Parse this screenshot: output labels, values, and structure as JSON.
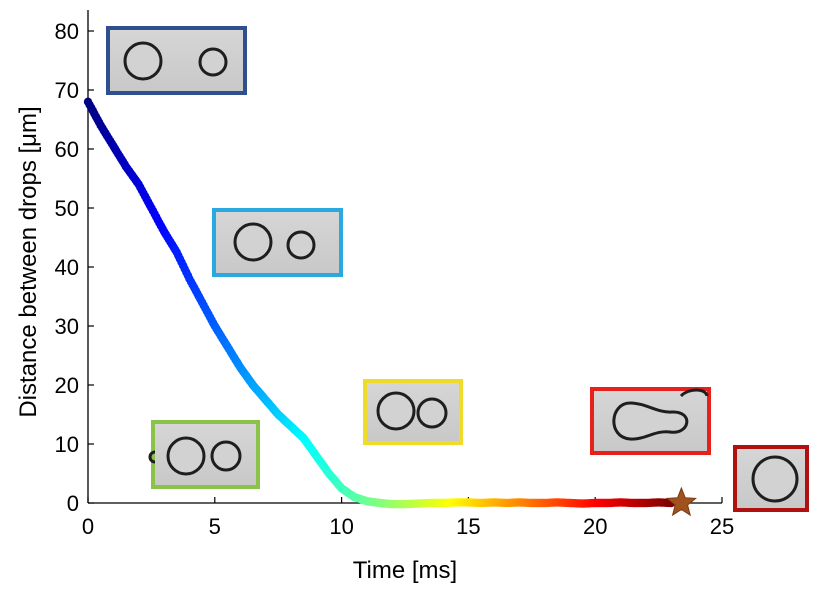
{
  "chart_data": {
    "type": "scatter",
    "xlabel": "Time [ms]",
    "ylabel": "Distance between drops [μm]",
    "xlim": [
      0,
      25
    ],
    "ylim": [
      -3,
      80
    ],
    "xticks": [
      0,
      5,
      10,
      15,
      20,
      25
    ],
    "yticks": [
      0,
      10,
      20,
      30,
      40,
      50,
      60,
      70,
      80
    ],
    "grid": false,
    "series": [
      {
        "marker": "circle",
        "colormap": "jet",
        "points": [
          [
            0.0,
            68.0
          ],
          [
            0.5,
            64.0
          ],
          [
            1.0,
            60.5
          ],
          [
            1.5,
            57.0
          ],
          [
            2.0,
            54.0
          ],
          [
            2.5,
            50.0
          ],
          [
            3.0,
            46.0
          ],
          [
            3.5,
            42.5
          ],
          [
            4.0,
            38.0
          ],
          [
            4.5,
            34.0
          ],
          [
            5.0,
            30.0
          ],
          [
            5.5,
            26.5
          ],
          [
            6.0,
            23.0
          ],
          [
            6.5,
            20.0
          ],
          [
            7.0,
            17.5
          ],
          [
            7.5,
            15.0
          ],
          [
            8.0,
            13.0
          ],
          [
            8.5,
            11.0
          ],
          [
            9.0,
            8.0
          ],
          [
            9.5,
            5.0
          ],
          [
            10.0,
            2.5
          ],
          [
            10.5,
            1.0
          ],
          [
            11.0,
            0.3
          ],
          [
            11.5,
            0.0
          ],
          [
            12.0,
            -0.2
          ],
          [
            12.5,
            -0.2
          ],
          [
            13.0,
            -0.1
          ],
          [
            13.5,
            0.0
          ],
          [
            14.0,
            0.0
          ],
          [
            14.5,
            0.1
          ],
          [
            15.0,
            0.1
          ],
          [
            15.5,
            0.0
          ],
          [
            16.0,
            0.1
          ],
          [
            16.5,
            0.0
          ],
          [
            17.0,
            0.1
          ],
          [
            17.5,
            0.0
          ],
          [
            18.0,
            0.0
          ],
          [
            18.5,
            0.1
          ],
          [
            19.0,
            0.0
          ],
          [
            19.5,
            -0.1
          ],
          [
            20.0,
            0.0
          ],
          [
            20.5,
            0.0
          ],
          [
            21.0,
            0.1
          ],
          [
            21.5,
            0.0
          ],
          [
            22.0,
            0.0
          ],
          [
            22.5,
            0.1
          ],
          [
            23.0,
            0.0
          ]
        ]
      }
    ],
    "coalescence_marker": {
      "shape": "star",
      "x": 23.4,
      "y": 0.0,
      "color": "#a0521e"
    },
    "insets": [
      {
        "border_color": "#2f4f8f",
        "depicts": "two separate drops far apart"
      },
      {
        "border_color": "#2aa8e0",
        "depicts": "two drops approaching"
      },
      {
        "border_color": "#8bc34a",
        "depicts": "two drops nearly touching"
      },
      {
        "border_color": "#f0dc28",
        "depicts": "two drops in contact"
      },
      {
        "border_color": "#e8201c",
        "depicts": "drops forming a neck"
      },
      {
        "border_color": "#b01010",
        "depicts": "single coalesced drop"
      }
    ]
  }
}
